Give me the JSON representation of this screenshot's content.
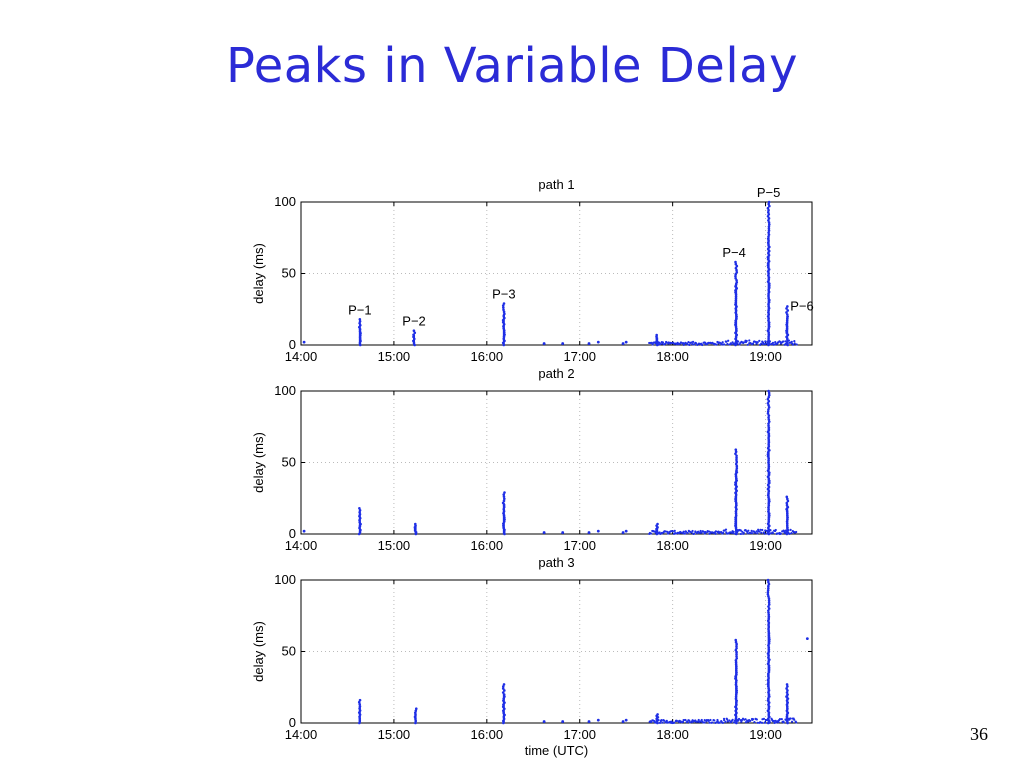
{
  "slide": {
    "title": "Peaks in Variable Delay",
    "page_number": "36"
  },
  "colors": {
    "title": "#2b2bd6",
    "points": "#1f2fe6",
    "grid": "#bbbbbb"
  },
  "chart_data": [
    {
      "type": "scatter",
      "title": "path 1",
      "xlabel": "",
      "ylabel": "delay (ms)",
      "x_ticks": [
        "14:00",
        "15:00",
        "16:00",
        "17:00",
        "18:00",
        "19:00"
      ],
      "xlim": [
        "14:00",
        "19:30"
      ],
      "ylim": [
        0,
        100
      ],
      "y_ticks": [
        0,
        50,
        100
      ],
      "grid": "dotted",
      "annotations": [
        {
          "text": "P−1",
          "x": "14:38",
          "y": 18
        },
        {
          "text": "P−2",
          "x": "15:13",
          "y": 10
        },
        {
          "text": "P−3",
          "x": "16:11",
          "y": 29
        },
        {
          "text": "P−4",
          "x": "18:41",
          "y": 58
        },
        {
          "text": "P−5",
          "x": "19:02",
          "y": 100
        },
        {
          "text": "P−6",
          "x": "19:14",
          "y": 27
        }
      ],
      "spikes": [
        {
          "x": "14:38",
          "max": 18
        },
        {
          "x": "15:13",
          "max": 10
        },
        {
          "x": "16:11",
          "max": 29
        },
        {
          "x": "17:50",
          "max": 7
        },
        {
          "x": "18:41",
          "max": 58
        },
        {
          "x": "19:02",
          "max": 100
        },
        {
          "x": "19:14",
          "max": 27
        }
      ],
      "scattered_points": [
        {
          "x": "14:02",
          "y": 2
        },
        {
          "x": "16:37",
          "y": 1
        },
        {
          "x": "16:49",
          "y": 1
        },
        {
          "x": "17:06",
          "y": 1
        },
        {
          "x": "17:12",
          "y": 2
        },
        {
          "x": "17:28",
          "y": 1
        },
        {
          "x": "17:30",
          "y": 2
        }
      ]
    },
    {
      "type": "scatter",
      "title": "path 2",
      "xlabel": "",
      "ylabel": "delay (ms)",
      "x_ticks": [
        "14:00",
        "15:00",
        "16:00",
        "17:00",
        "18:00",
        "19:00"
      ],
      "xlim": [
        "14:00",
        "19:30"
      ],
      "ylim": [
        0,
        100
      ],
      "y_ticks": [
        0,
        50,
        100
      ],
      "grid": "dotted",
      "spikes": [
        {
          "x": "14:38",
          "max": 18
        },
        {
          "x": "15:14",
          "max": 7
        },
        {
          "x": "16:11",
          "max": 29
        },
        {
          "x": "17:50",
          "max": 7
        },
        {
          "x": "18:41",
          "max": 59
        },
        {
          "x": "19:02",
          "max": 100
        },
        {
          "x": "19:14",
          "max": 26
        }
      ],
      "scattered_points": [
        {
          "x": "14:02",
          "y": 2
        },
        {
          "x": "16:37",
          "y": 1
        },
        {
          "x": "16:49",
          "y": 1
        },
        {
          "x": "17:06",
          "y": 1
        },
        {
          "x": "17:12",
          "y": 2
        },
        {
          "x": "17:28",
          "y": 1
        },
        {
          "x": "17:30",
          "y": 2
        }
      ]
    },
    {
      "type": "scatter",
      "title": "path 3",
      "xlabel": "time (UTC)",
      "ylabel": "delay (ms)",
      "x_ticks": [
        "14:00",
        "15:00",
        "16:00",
        "17:00",
        "18:00",
        "19:00"
      ],
      "xlim": [
        "14:00",
        "19:30"
      ],
      "ylim": [
        0,
        100
      ],
      "y_ticks": [
        0,
        50,
        100
      ],
      "grid": "dotted",
      "spikes": [
        {
          "x": "14:38",
          "max": 16
        },
        {
          "x": "15:14",
          "max": 10
        },
        {
          "x": "16:11",
          "max": 27
        },
        {
          "x": "17:50",
          "max": 6
        },
        {
          "x": "18:41",
          "max": 58
        },
        {
          "x": "19:02",
          "max": 100
        },
        {
          "x": "19:14",
          "max": 27
        }
      ],
      "scattered_points": [
        {
          "x": "16:37",
          "y": 1
        },
        {
          "x": "16:49",
          "y": 1
        },
        {
          "x": "17:06",
          "y": 1
        },
        {
          "x": "17:12",
          "y": 2
        },
        {
          "x": "17:28",
          "y": 1
        },
        {
          "x": "17:30",
          "y": 2
        },
        {
          "x": "19:27",
          "y": 59
        }
      ]
    }
  ]
}
